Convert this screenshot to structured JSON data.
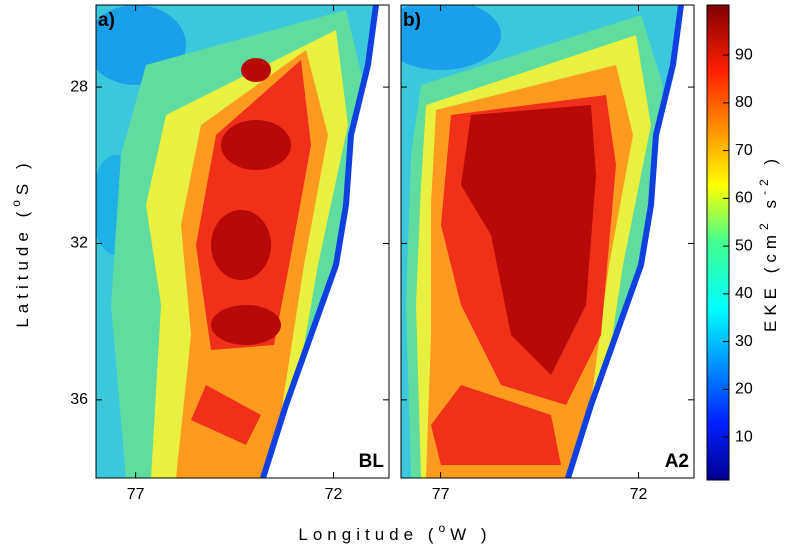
{
  "chart_data": {
    "type": "contour-map",
    "ylabel": [
      "Latitude (",
      "o",
      "S )"
    ],
    "xlabel": [
      "Longitude (",
      "o",
      "W )"
    ],
    "ylim": [
      25.9,
      38
    ],
    "yticks": [
      28,
      32,
      36
    ],
    "panels": [
      {
        "label": "a)",
        "name": "BL",
        "xlim": [
          78,
          70.6
        ],
        "xticks": [
          77,
          72
        ]
      },
      {
        "label": "b)",
        "name": "A2",
        "xlim": [
          78,
          70.6
        ],
        "xticks": [
          77,
          72
        ]
      }
    ],
    "colorbar": {
      "lim": [
        1,
        100.5
      ],
      "ticks": [
        10,
        20,
        30,
        40,
        50,
        60,
        70,
        80,
        90
      ],
      "label": [
        "EKE (cm",
        "2",
        " s",
        "-2",
        " )"
      ]
    }
  }
}
